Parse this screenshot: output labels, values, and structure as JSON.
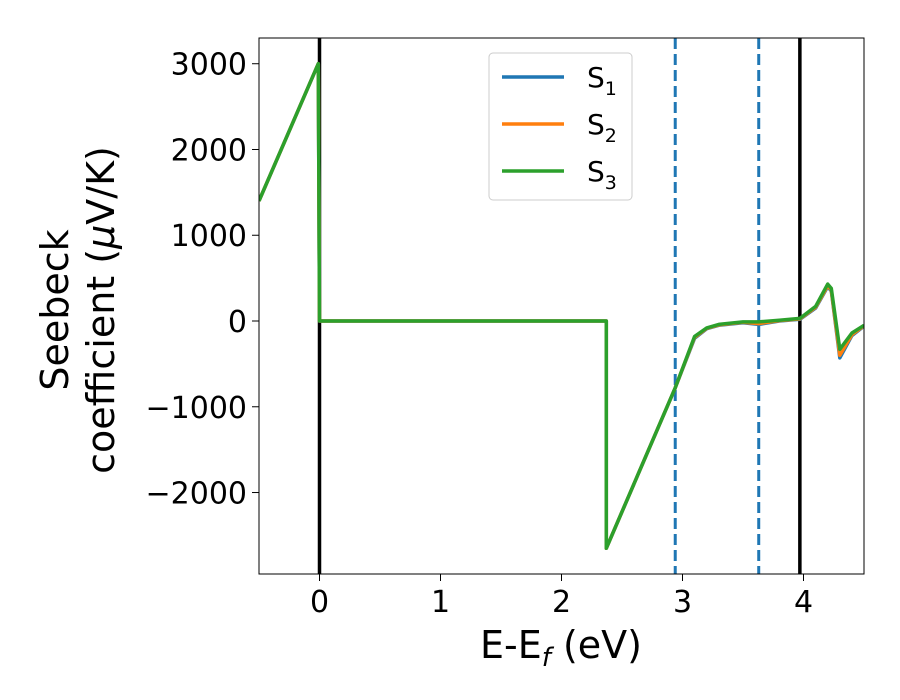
{
  "chart_data": {
    "type": "line",
    "xlabel": "E-E$_f$ (eV)",
    "xlabel_parts": {
      "main": "E-E",
      "sub": "f",
      "tail": " (eV)"
    },
    "ylabel_line1": "Seebeck",
    "ylabel_line2_pre": "coefficient  (",
    "ylabel_line2_mu": "μ",
    "ylabel_line2_post": "V/K)",
    "xlim": [
      -0.5,
      4.5
    ],
    "ylim": [
      -2950,
      3300
    ],
    "xticks": [
      0,
      1,
      2,
      3,
      4
    ],
    "xtick_labels": [
      "0",
      "1",
      "2",
      "3",
      "4"
    ],
    "yticks": [
      -2000,
      -1000,
      0,
      1000,
      2000,
      3000
    ],
    "ytick_labels": [
      "−2000",
      "−1000",
      "0",
      "1000",
      "2000",
      "3000"
    ],
    "grid": false,
    "legend_position": "upper-center",
    "vlines": [
      {
        "x": 0.0,
        "color": "#000000",
        "style": "solid"
      },
      {
        "x": 3.97,
        "color": "#000000",
        "style": "solid"
      },
      {
        "x": 2.94,
        "color": "#1f77b4",
        "style": "dashed"
      },
      {
        "x": 3.63,
        "color": "#1f77b4",
        "style": "dashed"
      }
    ],
    "series": [
      {
        "name": "S1",
        "label_main": "S",
        "label_sub": "1",
        "color": "#1f77b4",
        "x": [
          -0.5,
          -0.01,
          0.0,
          2.37,
          2.37,
          2.94,
          3.1,
          3.2,
          3.3,
          3.5,
          3.63,
          3.8,
          3.97,
          4.1,
          4.2,
          4.23,
          4.3,
          4.4,
          4.5
        ],
        "y": [
          1400,
          3000,
          0,
          0,
          -2650,
          -780,
          -200,
          -90,
          -50,
          -20,
          -40,
          0,
          20,
          150,
          400,
          350,
          -430,
          -170,
          -60
        ]
      },
      {
        "name": "S2",
        "label_main": "S",
        "label_sub": "2",
        "color": "#ff7f0e",
        "x": [
          -0.5,
          -0.01,
          0.0,
          2.37,
          2.37,
          2.94,
          3.1,
          3.2,
          3.3,
          3.5,
          3.63,
          3.8,
          3.97,
          4.1,
          4.2,
          4.23,
          4.3,
          4.4,
          4.5
        ],
        "y": [
          1400,
          3000,
          0,
          0,
          -2650,
          -780,
          -190,
          -85,
          -45,
          -15,
          -30,
          5,
          25,
          160,
          410,
          360,
          -400,
          -160,
          -55
        ]
      },
      {
        "name": "S3",
        "label_main": "S",
        "label_sub": "3",
        "color": "#2ca02c",
        "x": [
          -0.5,
          -0.01,
          0.0,
          2.37,
          2.37,
          2.94,
          3.1,
          3.2,
          3.3,
          3.5,
          3.63,
          3.8,
          3.97,
          4.1,
          4.2,
          4.23,
          4.3,
          4.4,
          4.5
        ],
        "y": [
          1400,
          3000,
          0,
          0,
          -2650,
          -780,
          -180,
          -80,
          -40,
          -10,
          -10,
          10,
          30,
          170,
          430,
          380,
          -330,
          -140,
          -50
        ]
      }
    ]
  }
}
